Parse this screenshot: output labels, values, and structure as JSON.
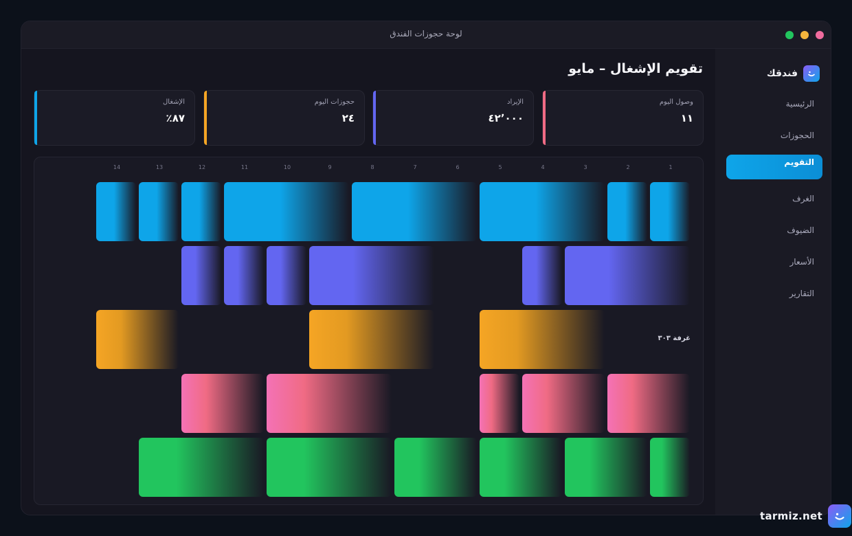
{
  "window": {
    "title": "لوحة حجوزات الفندق"
  },
  "colors": {
    "accent": "#0ea5e9",
    "traffic_green": "#22c55e",
    "traffic_yellow": "#f5b53d",
    "traffic_pink": "#f06b9d",
    "stat_blue": "#0ea5e9",
    "stat_orange": "#f5a524",
    "stat_indigo": "#6366f1",
    "stat_pink": "#f06b84"
  },
  "sidebar": {
    "brand": "فندقك",
    "brand_icon": "smile-icon",
    "items": [
      {
        "label": "الرئيسية",
        "active": false
      },
      {
        "label": "الحجوزات",
        "active": false
      },
      {
        "label": "التقويم",
        "active": true
      },
      {
        "label": "الغرف",
        "active": false
      },
      {
        "label": "الضيوف",
        "active": false
      },
      {
        "label": "الأسعار",
        "active": false
      },
      {
        "label": "التقارير",
        "active": false
      }
    ]
  },
  "header": {
    "title": "تقويم الإشغال – مايو"
  },
  "stats": [
    {
      "label": "وصول اليوم",
      "value": "١١"
    },
    {
      "label": "الإيراد",
      "value": "٤٢٬٠٠٠"
    },
    {
      "label": "حجوزات اليوم",
      "value": "٢٤"
    },
    {
      "label": "الإشغال",
      "value": "٨٧٪"
    }
  ],
  "calendar": {
    "days": [
      "1",
      "2",
      "3",
      "4",
      "5",
      "6",
      "7",
      "8",
      "9",
      "10",
      "11",
      "12",
      "13",
      "14"
    ],
    "rooms": [
      {
        "label": "",
        "color": "blue"
      },
      {
        "label": "",
        "color": "purple"
      },
      {
        "label": "غرفة ٣٠٣",
        "color": "orange"
      },
      {
        "label": "",
        "color": "pink"
      },
      {
        "label": "",
        "color": "green"
      }
    ]
  },
  "watermark": {
    "text": "tarmiz.net"
  }
}
